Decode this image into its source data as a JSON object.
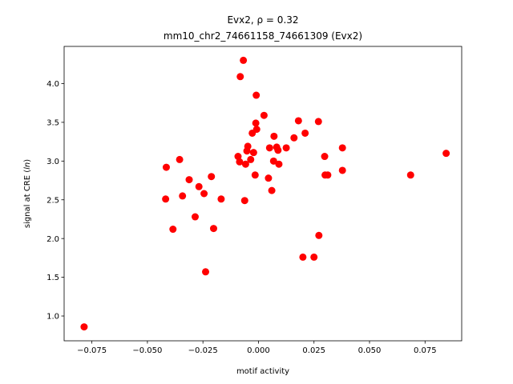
{
  "chart_data": {
    "type": "scatter",
    "title_line1": "Evx2, ρ = 0.32",
    "title_line2": "mm10_chr2_74661158_74661309 (Evx2)",
    "xlabel": "motif activity",
    "ylabel_prefix": "signal at CRE (",
    "ylabel_italic": "ln",
    "ylabel_suffix": ")",
    "xlim": [
      -0.0875,
      0.0915
    ],
    "ylim": [
      0.68,
      4.48
    ],
    "x_ticks": [
      -0.075,
      -0.05,
      -0.025,
      0.0,
      0.025,
      0.05,
      0.075
    ],
    "x_tick_labels": [
      "−0.075",
      "−0.050",
      "−0.025",
      "0.000",
      "0.025",
      "0.050",
      "0.075"
    ],
    "y_ticks": [
      1.0,
      1.5,
      2.0,
      2.5,
      3.0,
      3.5,
      4.0
    ],
    "y_tick_labels": [
      "1.0",
      "1.5",
      "2.0",
      "2.5",
      "3.0",
      "3.5",
      "4.0"
    ],
    "point_color": "#ff0000",
    "grid": false,
    "points": [
      {
        "x": -0.0785,
        "y": 0.86
      },
      {
        "x": -0.0415,
        "y": 2.92
      },
      {
        "x": -0.0418,
        "y": 2.51
      },
      {
        "x": -0.0385,
        "y": 2.12
      },
      {
        "x": -0.0355,
        "y": 3.02
      },
      {
        "x": -0.0342,
        "y": 2.55
      },
      {
        "x": -0.0312,
        "y": 2.76
      },
      {
        "x": -0.0285,
        "y": 2.28
      },
      {
        "x": -0.0268,
        "y": 2.67
      },
      {
        "x": -0.0245,
        "y": 2.58
      },
      {
        "x": -0.0238,
        "y": 1.57
      },
      {
        "x": -0.0212,
        "y": 2.8
      },
      {
        "x": -0.0202,
        "y": 2.13
      },
      {
        "x": -0.0168,
        "y": 2.51
      },
      {
        "x": -0.0092,
        "y": 3.06
      },
      {
        "x": -0.0085,
        "y": 2.99
      },
      {
        "x": -0.0082,
        "y": 4.09
      },
      {
        "x": -0.0068,
        "y": 4.3
      },
      {
        "x": -0.0062,
        "y": 2.49
      },
      {
        "x": -0.0058,
        "y": 2.96
      },
      {
        "x": -0.0052,
        "y": 3.13
      },
      {
        "x": -0.0048,
        "y": 3.19
      },
      {
        "x": -0.0035,
        "y": 3.02
      },
      {
        "x": -0.0028,
        "y": 3.36
      },
      {
        "x": -0.0022,
        "y": 3.11
      },
      {
        "x": -0.0015,
        "y": 2.82
      },
      {
        "x": -0.0012,
        "y": 3.49
      },
      {
        "x": -0.001,
        "y": 3.85
      },
      {
        "x": -0.0008,
        "y": 3.41
      },
      {
        "x": 0.0025,
        "y": 3.59
      },
      {
        "x": 0.0045,
        "y": 2.78
      },
      {
        "x": 0.005,
        "y": 3.17
      },
      {
        "x": 0.006,
        "y": 2.62
      },
      {
        "x": 0.0068,
        "y": 3.0
      },
      {
        "x": 0.007,
        "y": 3.32
      },
      {
        "x": 0.0082,
        "y": 3.18
      },
      {
        "x": 0.0088,
        "y": 3.14
      },
      {
        "x": 0.0092,
        "y": 2.96
      },
      {
        "x": 0.0125,
        "y": 3.17
      },
      {
        "x": 0.016,
        "y": 3.3
      },
      {
        "x": 0.018,
        "y": 3.52
      },
      {
        "x": 0.02,
        "y": 1.76
      },
      {
        "x": 0.021,
        "y": 3.36
      },
      {
        "x": 0.025,
        "y": 1.76
      },
      {
        "x": 0.027,
        "y": 3.51
      },
      {
        "x": 0.0272,
        "y": 2.04
      },
      {
        "x": 0.0298,
        "y": 3.06
      },
      {
        "x": 0.03,
        "y": 2.82
      },
      {
        "x": 0.0312,
        "y": 2.82
      },
      {
        "x": 0.0378,
        "y": 3.17
      },
      {
        "x": 0.0378,
        "y": 2.88
      },
      {
        "x": 0.0685,
        "y": 2.82
      },
      {
        "x": 0.0845,
        "y": 3.1
      }
    ]
  }
}
